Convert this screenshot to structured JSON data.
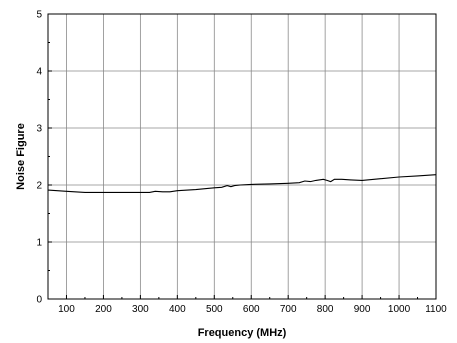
{
  "chart_data": {
    "type": "line",
    "title": "",
    "xlabel": "Frequency (MHz)",
    "ylabel": "Noise Figure",
    "xlim": [
      50,
      1100
    ],
    "ylim": [
      0,
      5
    ],
    "x_ticks": [
      100,
      200,
      300,
      400,
      500,
      600,
      700,
      800,
      900,
      1000,
      1100
    ],
    "y_ticks": [
      0,
      1,
      2,
      3,
      4,
      5
    ],
    "grid": true,
    "legend": "none",
    "line_color": "#000000",
    "series": [
      {
        "x": [
          50,
          100,
          150,
          200,
          250,
          300,
          325,
          340,
          360,
          380,
          400,
          450,
          500,
          520,
          535,
          545,
          555,
          570,
          600,
          650,
          700,
          730,
          745,
          760,
          775,
          795,
          805,
          815,
          825,
          845,
          870,
          900,
          950,
          1000,
          1050,
          1100
        ],
        "y": [
          1.91,
          1.89,
          1.87,
          1.87,
          1.87,
          1.87,
          1.87,
          1.89,
          1.88,
          1.88,
          1.9,
          1.92,
          1.95,
          1.96,
          1.99,
          1.97,
          1.99,
          2.0,
          2.01,
          2.02,
          2.03,
          2.04,
          2.07,
          2.06,
          2.08,
          2.1,
          2.08,
          2.06,
          2.1,
          2.1,
          2.09,
          2.08,
          2.11,
          2.14,
          2.16,
          2.18
        ]
      }
    ]
  }
}
